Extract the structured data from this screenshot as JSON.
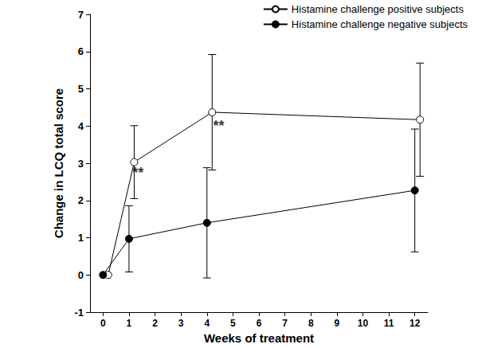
{
  "chart_data": {
    "type": "line",
    "x_label": "Weeks of treatment",
    "y_label": "Change in LCQ total score",
    "xlim": [
      -0.5,
      12.5
    ],
    "xticks": [
      0,
      1,
      2,
      3,
      4,
      5,
      6,
      7,
      8,
      9,
      10,
      11,
      12
    ],
    "ylim": [
      -1,
      7
    ],
    "yticks": [
      -1,
      0,
      1,
      2,
      3,
      4,
      5,
      6,
      7
    ],
    "grid": false,
    "legend": "upper right",
    "series": [
      {
        "name": "Histamine challenge positive subjects",
        "color": "#000000",
        "marker": "circle-open",
        "x": [
          0.2,
          1.2,
          4.2,
          12.2
        ],
        "values": [
          0,
          3.03,
          4.37,
          4.17
        ],
        "error": [
          null,
          0.98,
          1.55,
          1.52
        ]
      },
      {
        "name": "Histamine challenge negative subjects",
        "color": "#000000",
        "marker": "circle",
        "x": [
          0,
          1,
          4,
          12
        ],
        "values": [
          0,
          0.97,
          1.4,
          2.27
        ],
        "error": [
          null,
          0.89,
          1.48,
          1.65
        ]
      }
    ],
    "annotations": [
      {
        "text": "**",
        "x": 1.35,
        "y": 2.75
      },
      {
        "text": "**",
        "x": 4.45,
        "y": 4.0
      }
    ]
  }
}
